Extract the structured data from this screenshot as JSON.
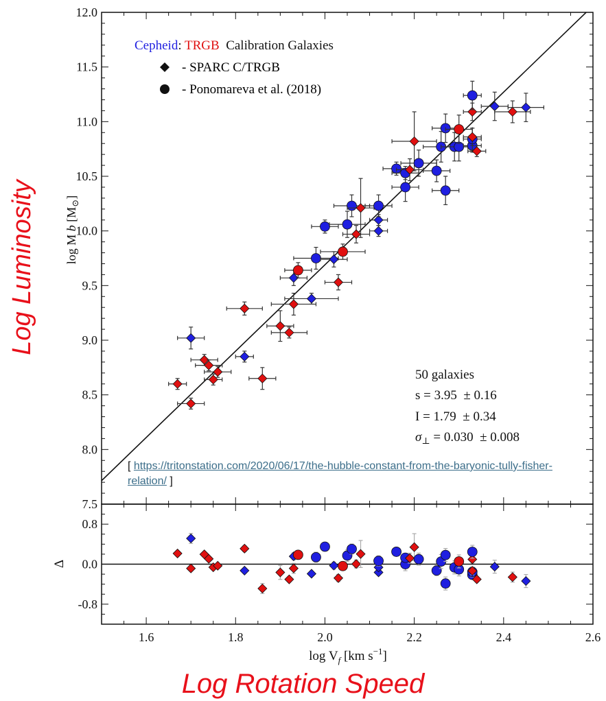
{
  "overlay": {
    "side_label": "Log Luminosity",
    "bottom_label": "Log Rotation Speed",
    "source": {
      "open": "[ ",
      "url": "https://tritonstation.com/2020/06/17/the-hubble-constant-from-the-baryonic-tully-fisher-relation/",
      "close": " ]"
    }
  },
  "chart_data": [
    {
      "type": "scatter",
      "title": "",
      "ylabel": "log M",
      "ylabel_sub": "b",
      "ylabel_unit": "[M",
      "ylabel_unit_sym": "⊙",
      "ylabel_unit_close": "]",
      "xlim": [
        1.5,
        2.6
      ],
      "ylim": [
        7.5,
        12.0
      ],
      "yticks": [
        "7.5",
        "8.0",
        "8.5",
        "9.0",
        "9.5",
        "10.0",
        "10.5",
        "11.0",
        "11.5",
        "12.0"
      ],
      "grid": false,
      "legend": {
        "position": "top-left",
        "title_parts": [
          {
            "text": "Cepheid",
            "color": "#1f1fe0"
          },
          {
            "text": ": ",
            "color": "#111111"
          },
          {
            "text": "TRGB",
            "color": "#e01010"
          },
          {
            "text": "  Calibration Galaxies",
            "color": "#111111"
          }
        ],
        "entries": [
          {
            "marker": "diamond",
            "label": "- SPARC C/TRGB"
          },
          {
            "marker": "circle",
            "label": "- Ponomareva et al. (2018)"
          }
        ]
      },
      "annotations": [
        "50 galaxies",
        "s = 3.95  ± 0.16",
        "I = 1.79  ± 0.34",
        "σ",
        "⊥",
        " = 0.030  ± 0.008"
      ],
      "fit_line": {
        "slope": 3.95,
        "intercept": 1.79
      },
      "colors": {
        "cepheid": "#1f1fe0",
        "trgb": "#e01010"
      },
      "points": [
        {
          "x": 1.67,
          "y": 8.6,
          "m": "d",
          "c": "t",
          "xe": 0.02,
          "ye": 0.05
        },
        {
          "x": 1.7,
          "y": 8.42,
          "m": "d",
          "c": "t",
          "xe": 0.03,
          "ye": 0.05
        },
        {
          "x": 1.7,
          "y": 9.02,
          "m": "d",
          "c": "c",
          "xe": 0.03,
          "ye": 0.1
        },
        {
          "x": 1.73,
          "y": 8.82,
          "m": "d",
          "c": "t",
          "xe": 0.03,
          "ye": 0.05
        },
        {
          "x": 1.74,
          "y": 8.77,
          "m": "d",
          "c": "t",
          "xe": 0.03,
          "ye": 0.05
        },
        {
          "x": 1.75,
          "y": 8.64,
          "m": "d",
          "c": "t",
          "xe": 0.02,
          "ye": 0.05
        },
        {
          "x": 1.76,
          "y": 8.71,
          "m": "d",
          "c": "t",
          "xe": 0.03,
          "ye": 0.05
        },
        {
          "x": 1.82,
          "y": 8.85,
          "m": "d",
          "c": "c",
          "xe": 0.02,
          "ye": 0.05
        },
        {
          "x": 1.82,
          "y": 9.29,
          "m": "d",
          "c": "t",
          "xe": 0.04,
          "ye": 0.06
        },
        {
          "x": 1.86,
          "y": 8.65,
          "m": "d",
          "c": "t",
          "xe": 0.03,
          "ye": 0.1
        },
        {
          "x": 1.9,
          "y": 9.13,
          "m": "d",
          "c": "t",
          "xe": 0.03,
          "ye": 0.14
        },
        {
          "x": 1.92,
          "y": 9.07,
          "m": "d",
          "c": "t",
          "xe": 0.04,
          "ye": 0.05
        },
        {
          "x": 1.93,
          "y": 9.33,
          "m": "d",
          "c": "t",
          "xe": 0.05,
          "ye": 0.1
        },
        {
          "x": 1.93,
          "y": 9.57,
          "m": "d",
          "c": "c",
          "xe": 0.03,
          "ye": 0.07
        },
        {
          "x": 1.94,
          "y": 9.64,
          "m": "o",
          "c": "t",
          "xe": 0.03,
          "ye": 0.07
        },
        {
          "x": 1.97,
          "y": 9.38,
          "m": "d",
          "c": "c",
          "xe": 0.06,
          "ye": 0.05
        },
        {
          "x": 1.98,
          "y": 9.75,
          "m": "o",
          "c": "c",
          "xe": 0.05,
          "ye": 0.1
        },
        {
          "x": 2.0,
          "y": 10.04,
          "m": "o",
          "c": "c",
          "xe": 0.03,
          "ye": 0.06
        },
        {
          "x": 2.02,
          "y": 9.74,
          "m": "d",
          "c": "c",
          "xe": 0.03,
          "ye": 0.07
        },
        {
          "x": 2.03,
          "y": 9.53,
          "m": "d",
          "c": "t",
          "xe": 0.03,
          "ye": 0.07
        },
        {
          "x": 2.04,
          "y": 9.81,
          "m": "o",
          "c": "t",
          "xe": 0.05,
          "ye": 0.07
        },
        {
          "x": 2.05,
          "y": 10.06,
          "m": "o",
          "c": "c",
          "xe": 0.04,
          "ye": 0.12
        },
        {
          "x": 2.06,
          "y": 10.23,
          "m": "o",
          "c": "c",
          "xe": 0.04,
          "ye": 0.1
        },
        {
          "x": 2.07,
          "y": 9.97,
          "m": "d",
          "c": "t",
          "xe": 0.03,
          "ye": 0.08
        },
        {
          "x": 2.08,
          "y": 10.21,
          "m": "d",
          "c": "t",
          "xe": 0.03,
          "ye": 0.27
        },
        {
          "x": 2.12,
          "y": 10.0,
          "m": "d",
          "c": "c",
          "xe": 0.02,
          "ye": 0.05
        },
        {
          "x": 2.12,
          "y": 10.1,
          "m": "d",
          "c": "c",
          "xe": 0.02,
          "ye": 0.05
        },
        {
          "x": 2.12,
          "y": 10.23,
          "m": "o",
          "c": "c",
          "xe": 0.03,
          "ye": 0.1
        },
        {
          "x": 2.16,
          "y": 10.57,
          "m": "o",
          "c": "c",
          "xe": 0.03,
          "ye": 0.06
        },
        {
          "x": 2.18,
          "y": 10.4,
          "m": "o",
          "c": "c",
          "xe": 0.03,
          "ye": 0.13
        },
        {
          "x": 2.18,
          "y": 10.53,
          "m": "o",
          "c": "c",
          "xe": 0.03,
          "ye": 0.06
        },
        {
          "x": 2.19,
          "y": 10.56,
          "m": "d",
          "c": "t",
          "xe": 0.03,
          "ye": 0.1
        },
        {
          "x": 2.2,
          "y": 10.82,
          "m": "d",
          "c": "t",
          "xe": 0.05,
          "ye": 0.27
        },
        {
          "x": 2.21,
          "y": 10.62,
          "m": "o",
          "c": "c",
          "xe": 0.04,
          "ye": 0.12
        },
        {
          "x": 2.25,
          "y": 10.55,
          "m": "o",
          "c": "c",
          "xe": 0.03,
          "ye": 0.1
        },
        {
          "x": 2.26,
          "y": 10.77,
          "m": "o",
          "c": "c",
          "xe": 0.04,
          "ye": 0.14
        },
        {
          "x": 2.27,
          "y": 10.94,
          "m": "o",
          "c": "c",
          "xe": 0.03,
          "ye": 0.13
        },
        {
          "x": 2.27,
          "y": 10.37,
          "m": "o",
          "c": "c",
          "xe": 0.03,
          "ye": 0.13
        },
        {
          "x": 2.29,
          "y": 10.77,
          "m": "o",
          "c": "c",
          "xe": 0.03,
          "ye": 0.13
        },
        {
          "x": 2.3,
          "y": 10.77,
          "m": "o",
          "c": "c",
          "xe": 0.03,
          "ye": 0.13
        },
        {
          "x": 2.3,
          "y": 10.93,
          "m": "o",
          "c": "t",
          "xe": 0.03,
          "ye": 0.13
        },
        {
          "x": 2.33,
          "y": 10.78,
          "m": "o",
          "c": "c",
          "xe": 0.02,
          "ye": 0.06
        },
        {
          "x": 2.33,
          "y": 10.84,
          "m": "o",
          "c": "c",
          "xe": 0.02,
          "ye": 0.1
        },
        {
          "x": 2.33,
          "y": 10.86,
          "m": "d",
          "c": "t",
          "xe": 0.02,
          "ye": 0.08
        },
        {
          "x": 2.33,
          "y": 11.09,
          "m": "d",
          "c": "t",
          "xe": 0.02,
          "ye": 0.08
        },
        {
          "x": 2.33,
          "y": 11.24,
          "m": "o",
          "c": "c",
          "xe": 0.02,
          "ye": 0.13
        },
        {
          "x": 2.34,
          "y": 10.73,
          "m": "d",
          "c": "t",
          "xe": 0.02,
          "ye": 0.05
        },
        {
          "x": 2.38,
          "y": 11.14,
          "m": "d",
          "c": "c",
          "xe": 0.03,
          "ye": 0.13
        },
        {
          "x": 2.42,
          "y": 11.09,
          "m": "d",
          "c": "t",
          "xe": 0.04,
          "ye": 0.1
        },
        {
          "x": 2.45,
          "y": 11.13,
          "m": "d",
          "c": "c",
          "xe": 0.04,
          "ye": 0.13
        }
      ]
    },
    {
      "type": "scatter",
      "title": "",
      "xlabel": "log V",
      "xlabel_sub": "f",
      "xlabel_unit": " [km s",
      "xlabel_exp": "−1",
      "xlabel_close": "]",
      "ylabel": "Δ",
      "xlim": [
        1.5,
        2.6
      ],
      "ylim": [
        -1.2,
        1.2
      ],
      "xticks": [
        "1.6",
        "1.8",
        "2.0",
        "2.2",
        "2.4",
        "2.6"
      ],
      "yticks": [
        "-0.8",
        "0.0",
        "0.8"
      ],
      "grid": false,
      "zero_line": 0
    }
  ]
}
